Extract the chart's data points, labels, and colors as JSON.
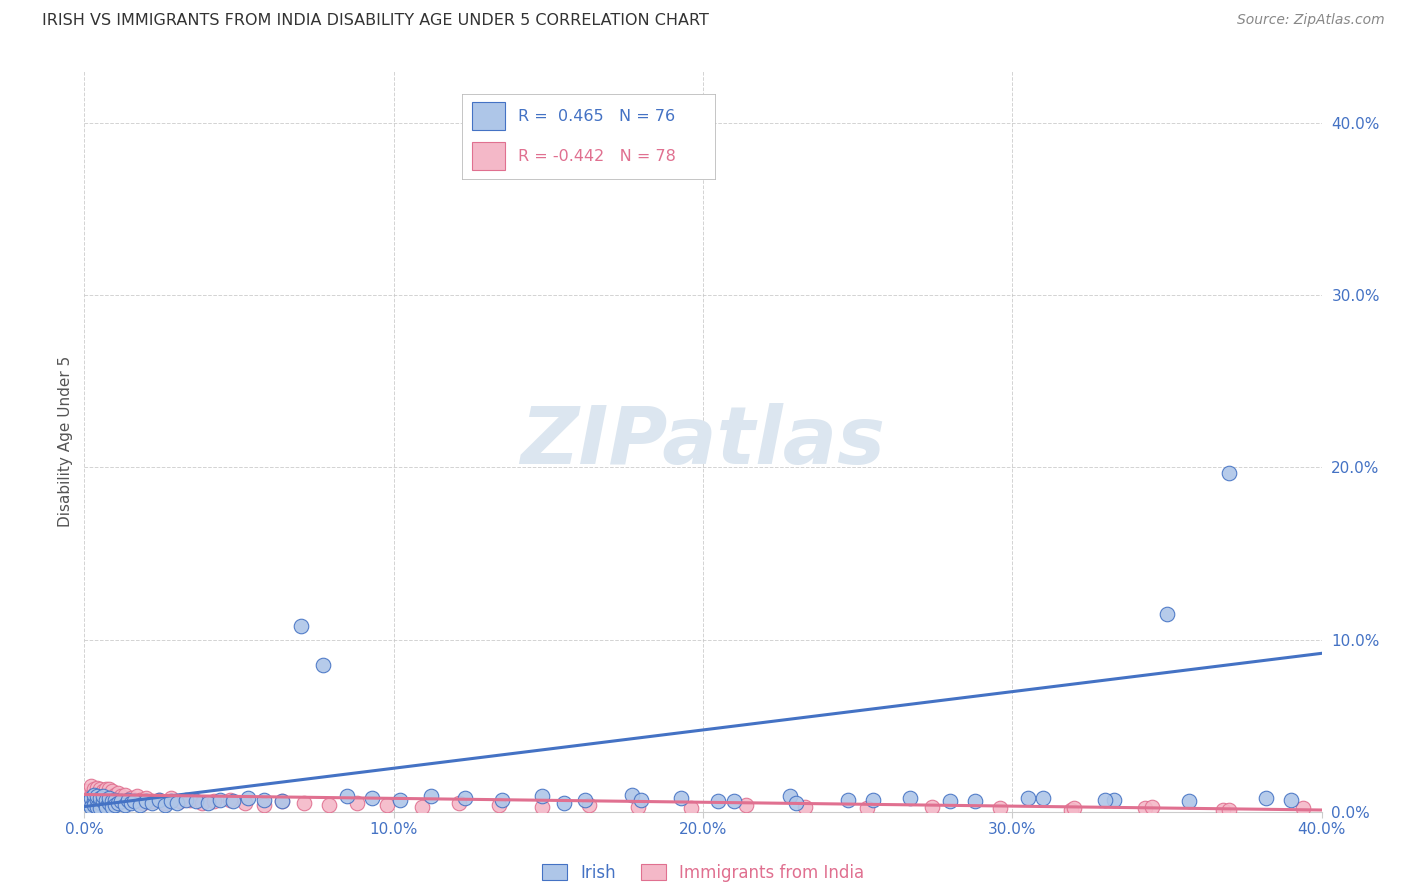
{
  "title": "IRISH VS IMMIGRANTS FROM INDIA DISABILITY AGE UNDER 5 CORRELATION CHART",
  "source": "Source: ZipAtlas.com",
  "ylabel": "Disability Age Under 5",
  "legend1_label": "Irish",
  "legend2_label": "Immigrants from India",
  "R1": 0.465,
  "N1": 76,
  "R2": -0.442,
  "N2": 78,
  "color_irish_fill": "#aec6e8",
  "color_irish_edge": "#4472c4",
  "color_india_fill": "#f4b8c8",
  "color_india_edge": "#e07090",
  "color_irish_line": "#4472c4",
  "color_india_line": "#e07090",
  "color_tick": "#4472c4",
  "watermark_color": "#dce6f0",
  "xlim": [
    0.0,
    0.4
  ],
  "ylim": [
    0.0,
    0.43
  ],
  "xticks": [
    0.0,
    0.1,
    0.2,
    0.3,
    0.4
  ],
  "yticks": [
    0.0,
    0.1,
    0.2,
    0.3,
    0.4
  ],
  "irish_x": [
    0.001,
    0.002,
    0.002,
    0.003,
    0.003,
    0.003,
    0.004,
    0.004,
    0.004,
    0.005,
    0.005,
    0.005,
    0.006,
    0.006,
    0.007,
    0.007,
    0.007,
    0.008,
    0.008,
    0.009,
    0.009,
    0.01,
    0.01,
    0.011,
    0.012,
    0.013,
    0.014,
    0.015,
    0.016,
    0.018,
    0.02,
    0.022,
    0.024,
    0.026,
    0.028,
    0.03,
    0.033,
    0.036,
    0.04,
    0.044,
    0.048,
    0.053,
    0.058,
    0.064,
    0.07,
    0.077,
    0.085,
    0.093,
    0.102,
    0.112,
    0.123,
    0.135,
    0.148,
    0.162,
    0.177,
    0.193,
    0.21,
    0.228,
    0.247,
    0.267,
    0.288,
    0.31,
    0.333,
    0.357,
    0.382,
    0.39,
    0.37,
    0.35,
    0.33,
    0.305,
    0.28,
    0.255,
    0.23,
    0.205,
    0.18,
    0.155
  ],
  "irish_y": [
    0.005,
    0.008,
    0.003,
    0.006,
    0.01,
    0.004,
    0.007,
    0.009,
    0.003,
    0.005,
    0.008,
    0.002,
    0.006,
    0.009,
    0.004,
    0.007,
    0.003,
    0.005,
    0.008,
    0.006,
    0.003,
    0.007,
    0.004,
    0.005,
    0.006,
    0.004,
    0.007,
    0.005,
    0.006,
    0.004,
    0.006,
    0.005,
    0.007,
    0.004,
    0.006,
    0.005,
    0.007,
    0.006,
    0.005,
    0.007,
    0.006,
    0.008,
    0.007,
    0.006,
    0.108,
    0.085,
    0.009,
    0.008,
    0.007,
    0.009,
    0.008,
    0.007,
    0.009,
    0.007,
    0.01,
    0.008,
    0.006,
    0.009,
    0.007,
    0.008,
    0.006,
    0.008,
    0.007,
    0.006,
    0.008,
    0.007,
    0.197,
    0.115,
    0.007,
    0.008,
    0.006,
    0.007,
    0.005,
    0.006,
    0.007,
    0.005
  ],
  "india_x": [
    0.001,
    0.001,
    0.002,
    0.002,
    0.002,
    0.003,
    0.003,
    0.003,
    0.003,
    0.004,
    0.004,
    0.004,
    0.005,
    0.005,
    0.005,
    0.005,
    0.006,
    0.006,
    0.006,
    0.007,
    0.007,
    0.007,
    0.008,
    0.008,
    0.008,
    0.009,
    0.009,
    0.009,
    0.01,
    0.01,
    0.011,
    0.011,
    0.012,
    0.012,
    0.013,
    0.013,
    0.014,
    0.015,
    0.016,
    0.017,
    0.018,
    0.019,
    0.02,
    0.022,
    0.024,
    0.026,
    0.028,
    0.031,
    0.034,
    0.038,
    0.042,
    0.047,
    0.052,
    0.058,
    0.064,
    0.071,
    0.079,
    0.088,
    0.098,
    0.109,
    0.121,
    0.134,
    0.148,
    0.163,
    0.179,
    0.196,
    0.214,
    0.233,
    0.253,
    0.274,
    0.296,
    0.319,
    0.343,
    0.368,
    0.394,
    0.37,
    0.345,
    0.32
  ],
  "india_y": [
    0.012,
    0.006,
    0.015,
    0.009,
    0.005,
    0.013,
    0.007,
    0.01,
    0.004,
    0.011,
    0.008,
    0.014,
    0.006,
    0.01,
    0.013,
    0.004,
    0.008,
    0.012,
    0.005,
    0.009,
    0.013,
    0.006,
    0.01,
    0.007,
    0.013,
    0.005,
    0.009,
    0.012,
    0.006,
    0.01,
    0.008,
    0.011,
    0.007,
    0.009,
    0.006,
    0.01,
    0.007,
    0.008,
    0.006,
    0.009,
    0.007,
    0.005,
    0.008,
    0.006,
    0.007,
    0.005,
    0.008,
    0.006,
    0.007,
    0.005,
    0.006,
    0.007,
    0.005,
    0.004,
    0.006,
    0.005,
    0.004,
    0.005,
    0.004,
    0.003,
    0.005,
    0.004,
    0.003,
    0.004,
    0.003,
    0.002,
    0.004,
    0.003,
    0.002,
    0.003,
    0.002,
    0.001,
    0.002,
    0.001,
    0.002,
    0.001,
    0.003,
    0.002
  ]
}
